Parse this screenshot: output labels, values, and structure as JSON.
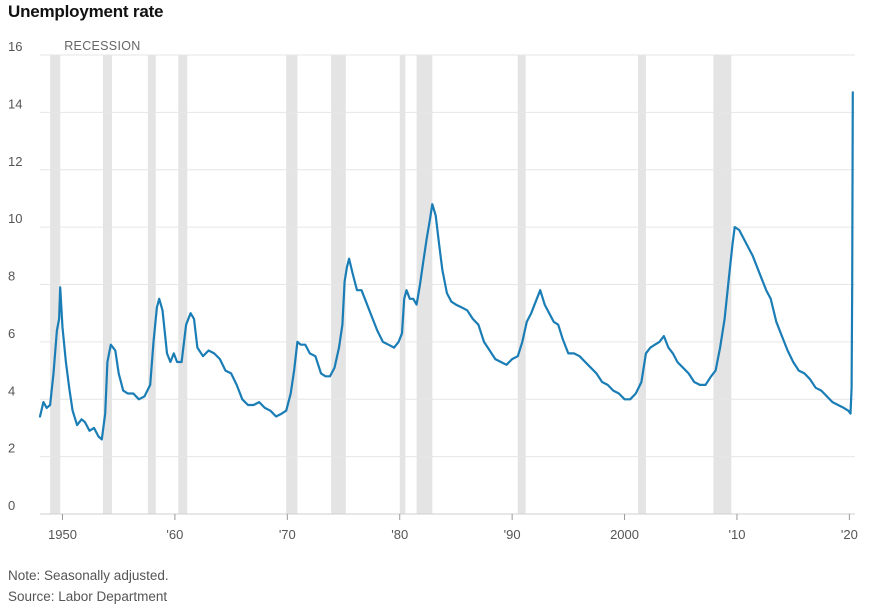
{
  "chart_data": {
    "type": "line",
    "title": "Unemployment rate",
    "recession_label": "RECESSION",
    "ylim": [
      0,
      16
    ],
    "y_ticks": [
      0,
      2,
      4,
      6,
      8,
      10,
      12,
      14,
      16
    ],
    "xlim": [
      1948,
      2020.5
    ],
    "x_ticks": [
      {
        "value": 1950,
        "label": "1950"
      },
      {
        "value": 1960,
        "label": "'60"
      },
      {
        "value": 1970,
        "label": "'70"
      },
      {
        "value": 1980,
        "label": "'80"
      },
      {
        "value": 1990,
        "label": "'90"
      },
      {
        "value": 2000,
        "label": "2000"
      },
      {
        "value": 2010,
        "label": "'10"
      },
      {
        "value": 2020,
        "label": "'20"
      }
    ],
    "grid": true,
    "colors": {
      "line": "#1a7db5",
      "recession": "#e4e4e4",
      "grid": "#e6e6e6",
      "axis": "#cfcfcf"
    },
    "recessions": [
      [
        1948.9,
        1949.8
      ],
      [
        1953.6,
        1954.4
      ],
      [
        1957.6,
        1958.3
      ],
      [
        1960.3,
        1961.1
      ],
      [
        1969.9,
        1970.9
      ],
      [
        1973.9,
        1975.2
      ],
      [
        1980.0,
        1980.5
      ],
      [
        1981.5,
        1982.9
      ],
      [
        1990.5,
        1991.2
      ],
      [
        2001.2,
        2001.9
      ],
      [
        2007.9,
        2009.5
      ]
    ],
    "series": [
      {
        "x": [
          1948.0,
          1948.3,
          1948.6,
          1948.9,
          1949.2,
          1949.5,
          1949.7,
          1949.8,
          1950.0,
          1950.3,
          1950.6,
          1950.9,
          1951.3,
          1951.7,
          1952.0,
          1952.4,
          1952.8,
          1953.2,
          1953.5,
          1953.8,
          1954.0,
          1954.3,
          1954.7,
          1955.0,
          1955.4,
          1955.8,
          1956.3,
          1956.8,
          1957.3,
          1957.8,
          1958.1,
          1958.4,
          1958.6,
          1958.9,
          1959.3,
          1959.6,
          1959.9,
          1960.2,
          1960.6,
          1961.0,
          1961.4,
          1961.7,
          1962.0,
          1962.5,
          1963.0,
          1963.5,
          1964.0,
          1964.5,
          1965.0,
          1965.5,
          1966.0,
          1966.5,
          1967.0,
          1967.5,
          1968.0,
          1968.5,
          1969.0,
          1969.5,
          1969.9,
          1970.3,
          1970.6,
          1970.9,
          1971.2,
          1971.6,
          1972.0,
          1972.5,
          1973.0,
          1973.4,
          1973.8,
          1974.2,
          1974.6,
          1974.9,
          1975.1,
          1975.3,
          1975.5,
          1975.8,
          1976.2,
          1976.6,
          1977.0,
          1977.5,
          1978.0,
          1978.5,
          1979.0,
          1979.5,
          1979.9,
          1980.2,
          1980.4,
          1980.6,
          1980.9,
          1981.2,
          1981.5,
          1981.8,
          1982.1,
          1982.4,
          1982.7,
          1982.9,
          1983.2,
          1983.5,
          1983.8,
          1984.2,
          1984.6,
          1985.0,
          1985.5,
          1986.0,
          1986.5,
          1987.0,
          1987.5,
          1988.0,
          1988.5,
          1989.0,
          1989.5,
          1990.0,
          1990.5,
          1990.9,
          1991.3,
          1991.7,
          1992.1,
          1992.5,
          1992.9,
          1993.3,
          1993.7,
          1994.1,
          1994.5,
          1995.0,
          1995.5,
          1996.0,
          1996.5,
          1997.0,
          1997.5,
          1998.0,
          1998.5,
          1999.0,
          1999.5,
          2000.0,
          2000.5,
          2001.0,
          2001.5,
          2001.9,
          2002.3,
          2002.7,
          2003.1,
          2003.5,
          2003.9,
          2004.3,
          2004.7,
          2005.2,
          2005.7,
          2006.2,
          2006.7,
          2007.2,
          2007.7,
          2008.1,
          2008.5,
          2008.9,
          2009.3,
          2009.6,
          2009.8,
          2010.2,
          2010.6,
          2011.0,
          2011.4,
          2011.8,
          2012.2,
          2012.6,
          2013.0,
          2013.5,
          2014.0,
          2014.5,
          2015.0,
          2015.5,
          2016.0,
          2016.5,
          2017.0,
          2017.5,
          2018.0,
          2018.5,
          2019.0,
          2019.5,
          2019.9,
          2020.1,
          2020.2,
          2020.25,
          2020.3
        ],
        "y": [
          3.4,
          3.9,
          3.7,
          3.8,
          4.9,
          6.4,
          6.8,
          7.9,
          6.5,
          5.3,
          4.4,
          3.6,
          3.1,
          3.3,
          3.2,
          2.9,
          3.0,
          2.7,
          2.6,
          3.5,
          5.3,
          5.9,
          5.7,
          4.9,
          4.3,
          4.2,
          4.2,
          4.0,
          4.1,
          4.5,
          6.0,
          7.2,
          7.5,
          7.1,
          5.6,
          5.3,
          5.6,
          5.3,
          5.3,
          6.6,
          7.0,
          6.8,
          5.8,
          5.5,
          5.7,
          5.6,
          5.4,
          5.0,
          4.9,
          4.5,
          4.0,
          3.8,
          3.8,
          3.9,
          3.7,
          3.6,
          3.4,
          3.5,
          3.6,
          4.2,
          5.0,
          6.0,
          5.9,
          5.9,
          5.6,
          5.5,
          4.9,
          4.8,
          4.8,
          5.1,
          5.8,
          6.6,
          8.1,
          8.6,
          8.9,
          8.4,
          7.8,
          7.8,
          7.4,
          6.9,
          6.4,
          6.0,
          5.9,
          5.8,
          6.0,
          6.3,
          7.5,
          7.8,
          7.5,
          7.5,
          7.3,
          8.0,
          8.8,
          9.6,
          10.3,
          10.8,
          10.4,
          9.4,
          8.5,
          7.7,
          7.4,
          7.3,
          7.2,
          7.1,
          6.8,
          6.6,
          6.0,
          5.7,
          5.4,
          5.3,
          5.2,
          5.4,
          5.5,
          6.0,
          6.7,
          7.0,
          7.4,
          7.8,
          7.3,
          7.0,
          6.7,
          6.6,
          6.1,
          5.6,
          5.6,
          5.5,
          5.3,
          5.1,
          4.9,
          4.6,
          4.5,
          4.3,
          4.2,
          4.0,
          4.0,
          4.2,
          4.6,
          5.6,
          5.8,
          5.9,
          6.0,
          6.2,
          5.8,
          5.6,
          5.3,
          5.1,
          4.9,
          4.6,
          4.5,
          4.5,
          4.8,
          5.0,
          5.8,
          6.8,
          8.3,
          9.4,
          10.0,
          9.9,
          9.6,
          9.3,
          9.0,
          8.6,
          8.2,
          7.8,
          7.5,
          6.7,
          6.2,
          5.7,
          5.3,
          5.0,
          4.9,
          4.7,
          4.4,
          4.3,
          4.1,
          3.9,
          3.8,
          3.7,
          3.6,
          3.5,
          4.4,
          8.0,
          14.7
        ]
      }
    ]
  },
  "notes": {
    "note": "Note: Seasonally adjusted.",
    "source": "Source: Labor Department"
  }
}
